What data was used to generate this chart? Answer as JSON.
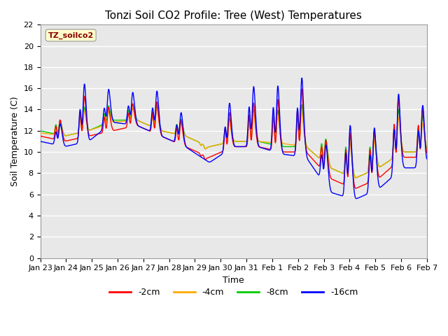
{
  "title": "Tonzi Soil CO2 Profile: Tree (West) Temperatures",
  "xlabel": "Time",
  "ylabel": "Soil Temperature (C)",
  "ylim": [
    0,
    22
  ],
  "yticks": [
    0,
    2,
    4,
    6,
    8,
    10,
    12,
    14,
    16,
    18,
    20,
    22
  ],
  "xtick_labels": [
    "Jan 23",
    "Jan 24",
    "Jan 25",
    "Jan 26",
    "Jan 27",
    "Jan 28",
    "Jan 29",
    "Jan 30",
    "Jan 31",
    "Feb 1",
    "Feb 2",
    "Feb 3",
    "Feb 4",
    "Feb 5",
    "Feb 6",
    "Feb 7"
  ],
  "legend_label": "TZ_soilco2",
  "series_labels": [
    "-2cm",
    "-4cm",
    "-8cm",
    "-16cm"
  ],
  "series_colors": [
    "#ff0000",
    "#ffaa00",
    "#00cc00",
    "#0000ff"
  ],
  "plot_bg_color": "#e8e8e8",
  "grid_color": "#ffffff",
  "title_fontsize": 11,
  "axis_fontsize": 9,
  "tick_fontsize": 8,
  "n_days": 16,
  "pts_per_day": 96
}
